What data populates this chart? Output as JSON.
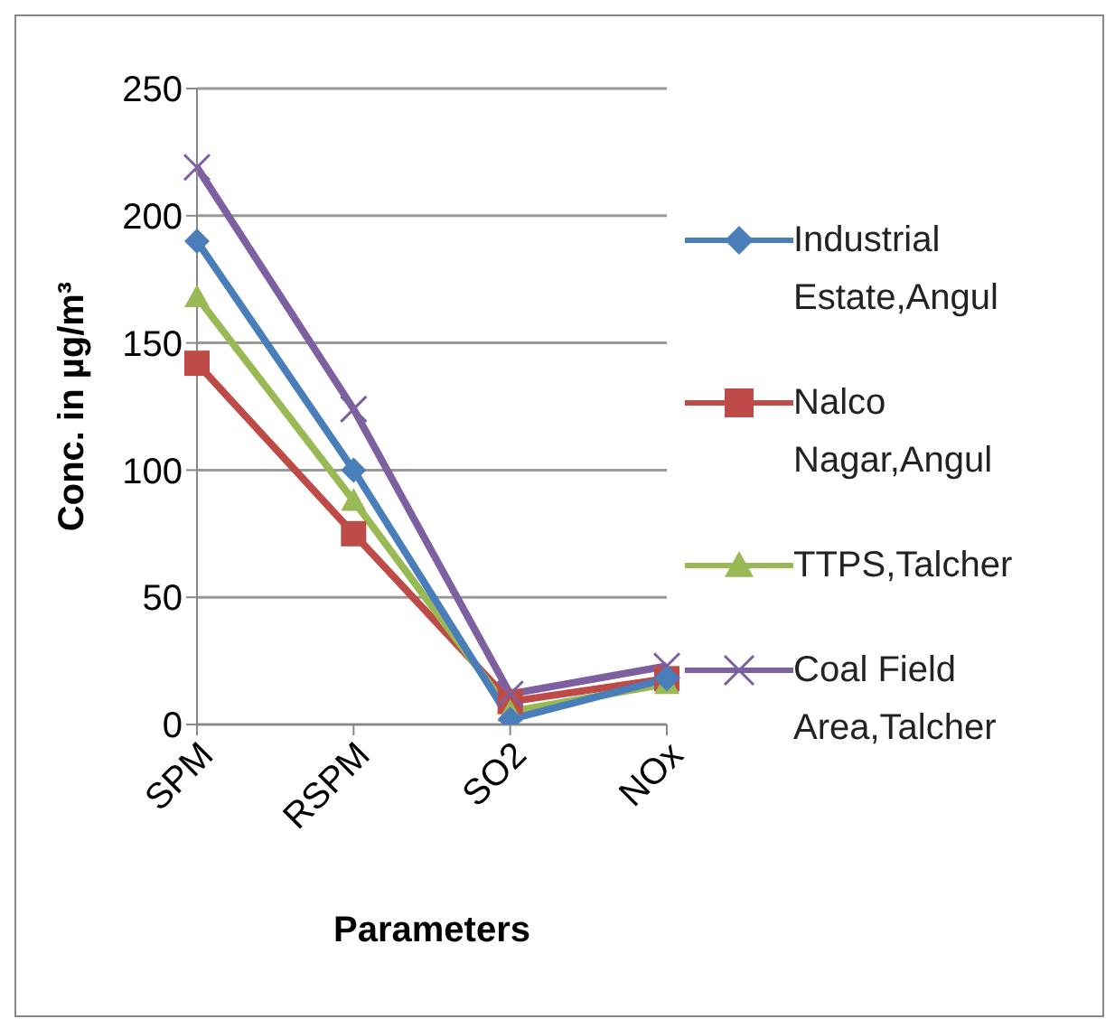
{
  "chart_data": {
    "type": "line",
    "xlabel": "Parameters",
    "ylabel": "Conc. in µg/m³",
    "categories": [
      "SPM",
      "RSPM",
      "SO2",
      "NOx"
    ],
    "series": [
      {
        "name": "Industrial Estate,Angul",
        "color": "#4a7ebb",
        "marker": "diamond",
        "values": [
          190,
          100,
          2,
          18
        ]
      },
      {
        "name": "Nalco Nagar,Angul",
        "color": "#be4b48",
        "marker": "square",
        "values": [
          142,
          75,
          9,
          18
        ]
      },
      {
        "name": "TTPS,Talcher",
        "color": "#98b954",
        "marker": "triangle",
        "values": [
          168,
          88,
          5,
          16
        ]
      },
      {
        "name": "Coal Field Area,Talcher",
        "color": "#7d60a0",
        "marker": "cross",
        "values": [
          219,
          124,
          12,
          23
        ]
      }
    ],
    "ylim": [
      0,
      250
    ],
    "yticks": [
      0,
      50,
      100,
      150,
      200,
      250
    ],
    "grid": "y",
    "legend": "right",
    "line_style": "solid"
  }
}
